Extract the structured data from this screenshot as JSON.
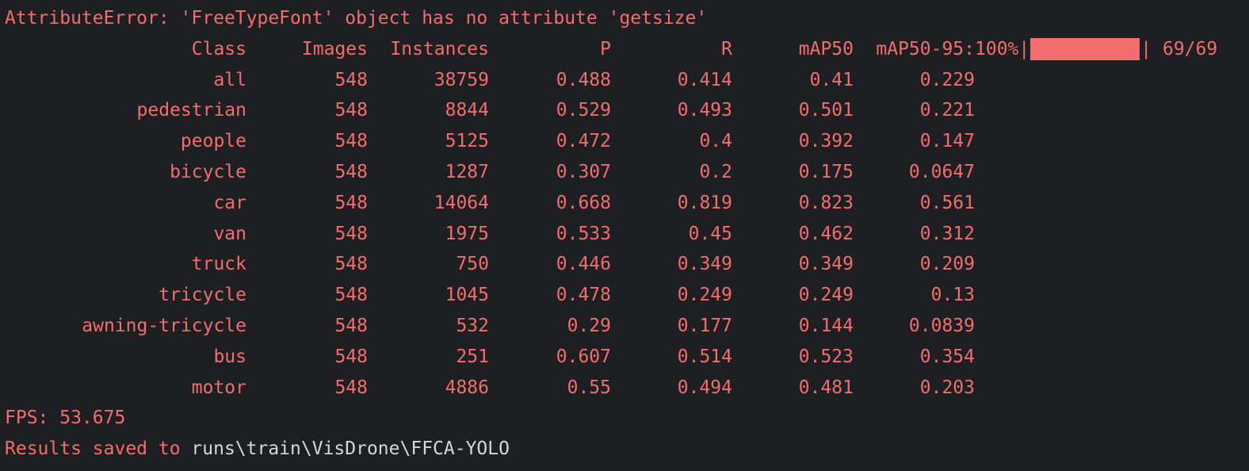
{
  "error_line": "AttributeError: 'FreeTypeFont' object has no attribute 'getsize'",
  "header": {
    "cols": [
      "Class",
      "Images",
      "Instances",
      "P",
      "R",
      "mAP50",
      "mAP50-95:"
    ],
    "progress_percent_text": "100%",
    "progress_fraction": 1.0,
    "progress_count": "69/69",
    "pipe_left": "|",
    "pipe_right": "|"
  },
  "rows": [
    [
      "all",
      "548",
      "38759",
      "0.488",
      "0.414",
      "0.41",
      "0.229"
    ],
    [
      "pedestrian",
      "548",
      "8844",
      "0.529",
      "0.493",
      "0.501",
      "0.221"
    ],
    [
      "people",
      "548",
      "5125",
      "0.472",
      "0.4",
      "0.392",
      "0.147"
    ],
    [
      "bicycle",
      "548",
      "1287",
      "0.307",
      "0.2",
      "0.175",
      "0.0647"
    ],
    [
      "car",
      "548",
      "14064",
      "0.668",
      "0.819",
      "0.823",
      "0.561"
    ],
    [
      "van",
      "548",
      "1975",
      "0.533",
      "0.45",
      "0.462",
      "0.312"
    ],
    [
      "truck",
      "548",
      "750",
      "0.446",
      "0.349",
      "0.349",
      "0.209"
    ],
    [
      "tricycle",
      "548",
      "1045",
      "0.478",
      "0.249",
      "0.249",
      "0.13"
    ],
    [
      "awning-tricycle",
      "548",
      "532",
      "0.29",
      "0.177",
      "0.144",
      "0.0839"
    ],
    [
      "bus",
      "548",
      "251",
      "0.607",
      "0.514",
      "0.523",
      "0.354"
    ],
    [
      "motor",
      "548",
      "4886",
      "0.55",
      "0.494",
      "0.481",
      "0.203"
    ]
  ],
  "fps_line": "FPS: 53.675",
  "results": {
    "prefix": "Results saved to ",
    "path": "runs\\train\\VisDrone\\FFCA-YOLO"
  },
  "colors": {
    "background": "#1e1f22",
    "text_red": "#f26d6d",
    "path_gray": "#d6d6d6"
  }
}
